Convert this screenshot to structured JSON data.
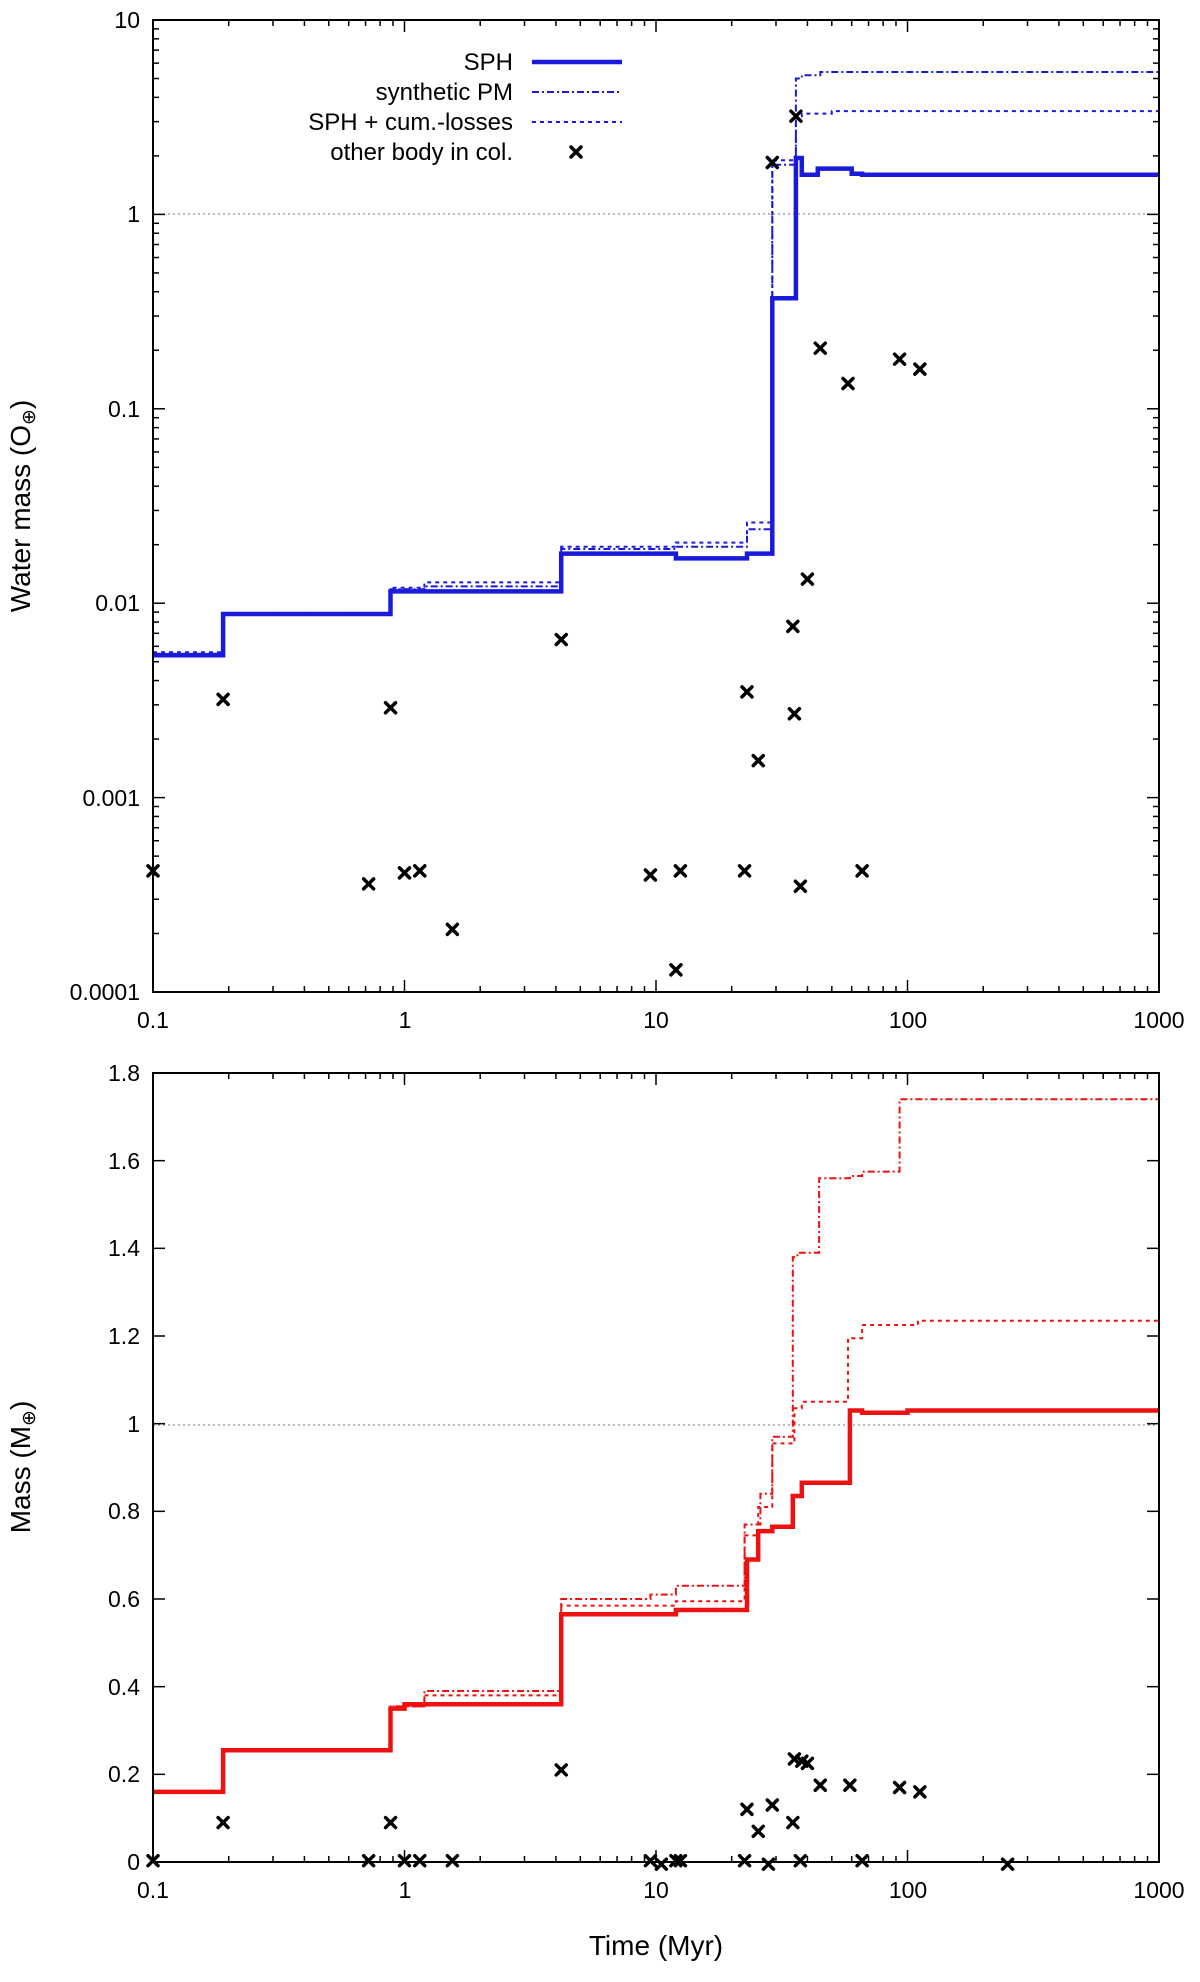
{
  "chart_data": [
    {
      "type": "line",
      "panel": "top",
      "xscale": "log",
      "yscale": "log",
      "xlim": [
        0.1,
        1000
      ],
      "ylim": [
        0.0001,
        10
      ],
      "xticks": [
        0.1,
        1,
        10,
        100,
        1000
      ],
      "xtick_labels": [
        "0.1",
        "1",
        "10",
        "100",
        "1000"
      ],
      "yticks": [
        0.0001,
        0.001,
        0.01,
        0.1,
        1,
        10
      ],
      "ytick_labels": [
        "0.0001",
        "0.001",
        "0.01",
        "0.1",
        "1",
        "10"
      ],
      "ylabel": "Water mass (O",
      "ylabel_symbol": "⊕",
      "xlabel": "",
      "reference_line": 1,
      "legend": {
        "position": "top-left",
        "entries": [
          {
            "key": "sph",
            "label": "SPH"
          },
          {
            "key": "synthetic",
            "label": "synthetic PM"
          },
          {
            "key": "cumlosses",
            "label": "SPH + cum.-losses"
          },
          {
            "key": "other",
            "label": "other body in col."
          }
        ]
      },
      "series": [
        {
          "name": "SPH",
          "key": "sph",
          "color": "#1a1adb",
          "style": "solid",
          "x": [
            0.1,
            0.19,
            0.19,
            0.88,
            0.88,
            4.2,
            4.2,
            12,
            12,
            23,
            23,
            29,
            29,
            36,
            36,
            38,
            38,
            44,
            44,
            60,
            60,
            66,
            66,
            110,
            110,
            1000
          ],
          "y": [
            0.0054,
            0.0054,
            0.0088,
            0.0088,
            0.0115,
            0.0115,
            0.018,
            0.018,
            0.017,
            0.017,
            0.018,
            0.018,
            0.37,
            0.37,
            1.95,
            1.95,
            1.6,
            1.6,
            1.72,
            1.72,
            1.62,
            1.62,
            1.6,
            1.6,
            1.6,
            1.6
          ]
        },
        {
          "name": "synthetic PM",
          "key": "synthetic",
          "color": "#1a1adb",
          "style": "dashdot",
          "x": [
            0.1,
            0.19,
            0.19,
            0.88,
            0.88,
            1.2,
            1.2,
            4.2,
            4.2,
            12,
            12,
            23,
            23,
            29,
            29,
            36,
            36,
            38,
            38,
            45,
            45,
            1000
          ],
          "y": [
            0.0055,
            0.0055,
            0.0087,
            0.0087,
            0.0118,
            0.0118,
            0.0122,
            0.0122,
            0.019,
            0.019,
            0.0195,
            0.0195,
            0.024,
            0.024,
            1.8,
            1.8,
            5.0,
            5.0,
            5.2,
            5.2,
            5.4,
            5.4
          ]
        },
        {
          "name": "SPH + cum.-losses",
          "key": "cumlosses",
          "color": "#1a1adb",
          "style": "dotted",
          "x": [
            0.1,
            0.19,
            0.19,
            0.88,
            0.88,
            1.2,
            1.2,
            4.2,
            4.2,
            12,
            12,
            23,
            23,
            29,
            29,
            36,
            36,
            38,
            38,
            50,
            50,
            1000
          ],
          "y": [
            0.0056,
            0.0056,
            0.0088,
            0.0088,
            0.012,
            0.012,
            0.0128,
            0.0128,
            0.0195,
            0.0195,
            0.0205,
            0.0205,
            0.026,
            0.026,
            1.9,
            1.9,
            3.2,
            3.2,
            3.3,
            3.3,
            3.4,
            3.4
          ]
        }
      ],
      "scatter": {
        "name": "other body in col.",
        "key": "other",
        "marker": "x",
        "color": "#000000",
        "points": [
          [
            0.1,
            0.00042
          ],
          [
            0.19,
            0.0032
          ],
          [
            0.72,
            0.00036
          ],
          [
            0.88,
            0.0029
          ],
          [
            1.0,
            0.00041
          ],
          [
            1.15,
            0.00042
          ],
          [
            1.55,
            0.00021
          ],
          [
            4.2,
            0.0065
          ],
          [
            9.5,
            0.0004
          ],
          [
            12,
            0.00013
          ],
          [
            12.5,
            0.00042
          ],
          [
            22.5,
            0.00042
          ],
          [
            23,
            0.0035
          ],
          [
            25.5,
            0.00155
          ],
          [
            29,
            1.85
          ],
          [
            35,
            0.0076
          ],
          [
            35.5,
            0.0027
          ],
          [
            36,
            3.2
          ],
          [
            37.5,
            0.00035
          ],
          [
            40,
            0.0133
          ],
          [
            45,
            0.205
          ],
          [
            58,
            0.135
          ],
          [
            66,
            0.00042
          ],
          [
            93,
            0.18
          ],
          [
            112,
            0.16
          ]
        ]
      }
    },
    {
      "type": "line",
      "panel": "bottom",
      "xscale": "log",
      "yscale": "linear",
      "xlim": [
        0.1,
        1000
      ],
      "ylim": [
        0,
        1.8
      ],
      "xticks": [
        0.1,
        1,
        10,
        100,
        1000
      ],
      "xtick_labels": [
        "0.1",
        "1",
        "10",
        "100",
        "1000"
      ],
      "yticks": [
        0,
        0.2,
        0.4,
        0.6,
        0.8,
        1,
        1.2,
        1.4,
        1.6,
        1.8
      ],
      "ytick_labels": [
        "0",
        "0.2",
        "0.4",
        "0.6",
        "0.8",
        "1",
        "1.2",
        "1.4",
        "1.6",
        "1.8"
      ],
      "ylabel": "Mass (M",
      "ylabel_symbol": "⊕",
      "xlabel": "Time (Myr)",
      "reference_line": 1,
      "series": [
        {
          "name": "SPH",
          "key": "sph",
          "color": "#ee1111",
          "style": "solid",
          "x": [
            0.1,
            0.19,
            0.19,
            0.88,
            0.88,
            1.0,
            1.0,
            4.2,
            4.2,
            12,
            12,
            23,
            23,
            25.5,
            25.5,
            29,
            29,
            35,
            35,
            38,
            38,
            44,
            44,
            59,
            59,
            66,
            66,
            100,
            100,
            1000
          ],
          "y": [
            0.16,
            0.16,
            0.255,
            0.255,
            0.35,
            0.35,
            0.36,
            0.36,
            0.565,
            0.565,
            0.575,
            0.575,
            0.69,
            0.69,
            0.755,
            0.755,
            0.765,
            0.765,
            0.835,
            0.835,
            0.865,
            0.865,
            0.865,
            0.865,
            1.03,
            1.03,
            1.025,
            1.025,
            1.03,
            1.03
          ]
        },
        {
          "name": "synthetic PM",
          "key": "synthetic",
          "color": "#ee1111",
          "style": "dashdot",
          "x": [
            0.1,
            0.19,
            0.19,
            0.88,
            0.88,
            1.2,
            1.2,
            4.2,
            4.2,
            9.5,
            9.5,
            12,
            12,
            22.5,
            22.5,
            26,
            26,
            29,
            29,
            35,
            35,
            36.5,
            36.5,
            44.5,
            44.5,
            59,
            59,
            66,
            66,
            93,
            93,
            1000
          ],
          "y": [
            0.16,
            0.16,
            0.255,
            0.255,
            0.355,
            0.355,
            0.39,
            0.39,
            0.6,
            0.6,
            0.61,
            0.61,
            0.63,
            0.63,
            0.77,
            0.77,
            0.84,
            0.84,
            0.97,
            0.97,
            1.38,
            1.38,
            1.39,
            1.39,
            1.56,
            1.56,
            1.565,
            1.565,
            1.575,
            1.575,
            1.74,
            1.74
          ]
        },
        {
          "name": "SPH + cum.-losses",
          "key": "cumlosses",
          "color": "#ee1111",
          "style": "dotted",
          "x": [
            0.1,
            0.19,
            0.19,
            0.88,
            0.88,
            1.2,
            1.2,
            4.2,
            4.2,
            12,
            12,
            22.5,
            22.5,
            25.5,
            25.5,
            29,
            29,
            35.5,
            35.5,
            38,
            38,
            58,
            58,
            66,
            66,
            110,
            110,
            1000
          ],
          "y": [
            0.16,
            0.16,
            0.255,
            0.255,
            0.355,
            0.355,
            0.38,
            0.38,
            0.585,
            0.585,
            0.595,
            0.595,
            0.745,
            0.745,
            0.81,
            0.81,
            0.955,
            0.955,
            1.035,
            1.035,
            1.05,
            1.05,
            1.195,
            1.195,
            1.225,
            1.225,
            1.235,
            1.235
          ]
        }
      ],
      "scatter": {
        "name": "other body in col.",
        "key": "other",
        "marker": "x",
        "color": "#000000",
        "points": [
          [
            0.1,
            0.003
          ],
          [
            0.19,
            0.09
          ],
          [
            0.72,
            0.003
          ],
          [
            0.88,
            0.09
          ],
          [
            1.0,
            0.003
          ],
          [
            1.15,
            0.003
          ],
          [
            1.55,
            0.003
          ],
          [
            4.2,
            0.21
          ],
          [
            9.5,
            0.003
          ],
          [
            10.5,
            -0.005
          ],
          [
            12,
            0.003
          ],
          [
            12.5,
            0.003
          ],
          [
            22.5,
            0.003
          ],
          [
            23,
            0.12
          ],
          [
            25.5,
            0.07
          ],
          [
            28,
            -0.005
          ],
          [
            29,
            0.13
          ],
          [
            35,
            0.09
          ],
          [
            35.5,
            0.235
          ],
          [
            37.5,
            0.003
          ],
          [
            38,
            0.23
          ],
          [
            40,
            0.225
          ],
          [
            45,
            0.175
          ],
          [
            59,
            0.175
          ],
          [
            66,
            0.003
          ],
          [
            93,
            0.17
          ],
          [
            112,
            0.16
          ],
          [
            250,
            -0.005
          ]
        ]
      }
    }
  ]
}
